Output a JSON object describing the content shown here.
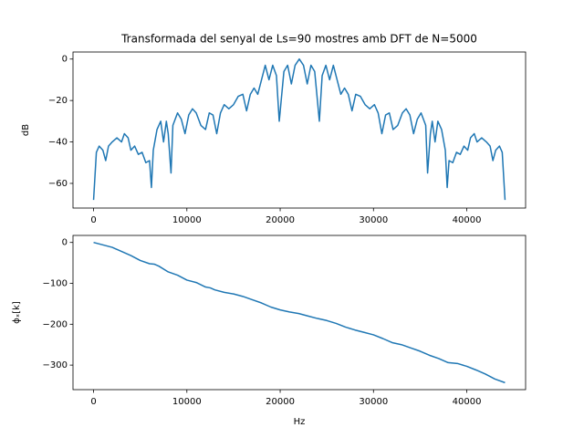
{
  "chart_data": [
    {
      "type": "line",
      "title": "Transformada del senyal de Ls=90 mostres amb DFT de N=5000",
      "y_label": "dB",
      "x": [
        0,
        300,
        600,
        1000,
        1300,
        1600,
        2000,
        2500,
        3000,
        3300,
        3700,
        4000,
        4400,
        4800,
        5200,
        5600,
        6000,
        6200,
        6400,
        6800,
        7200,
        7500,
        7800,
        8000,
        8300,
        8500,
        9000,
        9400,
        9800,
        10200,
        10600,
        11000,
        11500,
        12000,
        12400,
        12800,
        13200,
        13600,
        14000,
        14500,
        15000,
        15500,
        16000,
        16400,
        16800,
        17200,
        17600,
        18000,
        18400,
        18800,
        19200,
        19600,
        19900,
        20400,
        20800,
        21200,
        21600,
        22050,
        22500,
        22900,
        23300,
        23700,
        24200,
        24500,
        24900,
        25300,
        25700,
        26100,
        26500,
        26900,
        27300,
        27700,
        28100,
        28600,
        29100,
        29600,
        30100,
        30500,
        30900,
        31300,
        31700,
        32100,
        32600,
        33100,
        33500,
        33900,
        34300,
        34700,
        35100,
        35600,
        35800,
        36100,
        36300,
        36600,
        36900,
        37300,
        37700,
        37900,
        38100,
        38500,
        38900,
        39300,
        39700,
        40100,
        40400,
        40800,
        41100,
        41600,
        42100,
        42500,
        42800,
        43100,
        43500,
        43800,
        44100
      ],
      "series": [
        {
          "color": "#1f77b4",
          "values": [
            -68,
            -45,
            -42,
            -44,
            -49,
            -42,
            -40,
            -38,
            -40,
            -36,
            -38,
            -44,
            -42,
            -46,
            -45,
            -50,
            -49,
            -62,
            -44,
            -34,
            -30,
            -40,
            -30,
            -36,
            -55,
            -32,
            -26,
            -29,
            -36,
            -27,
            -24,
            -26,
            -32,
            -34,
            -26,
            -27,
            -36,
            -26,
            -22,
            -24,
            -22,
            -18,
            -17,
            -25,
            -17,
            -14,
            -17,
            -10,
            -3,
            -10,
            -3,
            -8,
            -30,
            -6,
            -3,
            -12,
            -3,
            0,
            -3,
            -12,
            -3,
            -6,
            -30,
            -8,
            -3,
            -10,
            -3,
            -10,
            -17,
            -14,
            -17,
            -25,
            -17,
            -18,
            -22,
            -24,
            -22,
            -26,
            -36,
            -27,
            -26,
            -34,
            -32,
            -26,
            -24,
            -27,
            -36,
            -29,
            -26,
            -32,
            -55,
            -36,
            -30,
            -40,
            -30,
            -34,
            -44,
            -62,
            -49,
            -50,
            -45,
            -46,
            -42,
            -44,
            -38,
            -36,
            -40,
            -38,
            -40,
            -42,
            -49,
            -44,
            -42,
            -45,
            -68
          ]
        }
      ],
      "xlim": [
        -2205,
        46305
      ],
      "ylim": [
        -71.9,
        3.4
      ],
      "xticks": [
        0,
        10000,
        20000,
        30000,
        40000
      ],
      "yticks": [
        0,
        {
          "value": -20,
          "label": "−20"
        },
        {
          "value": -40,
          "label": "−40"
        },
        {
          "value": -60,
          "label": "−60"
        }
      ]
    },
    {
      "type": "line",
      "x_label": "Hz",
      "y_label": "ϕₓ[k]",
      "x": [
        0,
        2000,
        4000,
        5000,
        6000,
        6500,
        7000,
        8000,
        9000,
        10000,
        11000,
        12000,
        12500,
        13000,
        14000,
        15000,
        16000,
        17000,
        18000,
        19000,
        20000,
        21000,
        22000,
        23000,
        24000,
        25000,
        26000,
        27000,
        28000,
        29000,
        30000,
        31000,
        32000,
        33000,
        34000,
        35000,
        36000,
        37000,
        38000,
        39000,
        40000,
        41000,
        42000,
        43000,
        44100
      ],
      "series": [
        {
          "color": "#1f77b4",
          "values": [
            0,
            -12,
            -32,
            -44,
            -52,
            -53,
            -58,
            -72,
            -80,
            -92,
            -98,
            -109,
            -111,
            -116,
            -122,
            -126,
            -132,
            -140,
            -148,
            -158,
            -165,
            -170,
            -174,
            -180,
            -186,
            -191,
            -198,
            -207,
            -214,
            -220,
            -226,
            -235,
            -245,
            -250,
            -258,
            -266,
            -276,
            -284,
            -294,
            -296,
            -303,
            -312,
            -322,
            -334,
            -343
          ]
        }
      ],
      "xlim": [
        -2205,
        46305
      ],
      "ylim": [
        -360,
        17.2
      ],
      "xticks": [
        0,
        10000,
        20000,
        30000,
        40000
      ],
      "yticks": [
        0,
        {
          "value": -100,
          "label": "−100"
        },
        {
          "value": -200,
          "label": "−200"
        },
        {
          "value": -300,
          "label": "−300"
        }
      ]
    }
  ]
}
